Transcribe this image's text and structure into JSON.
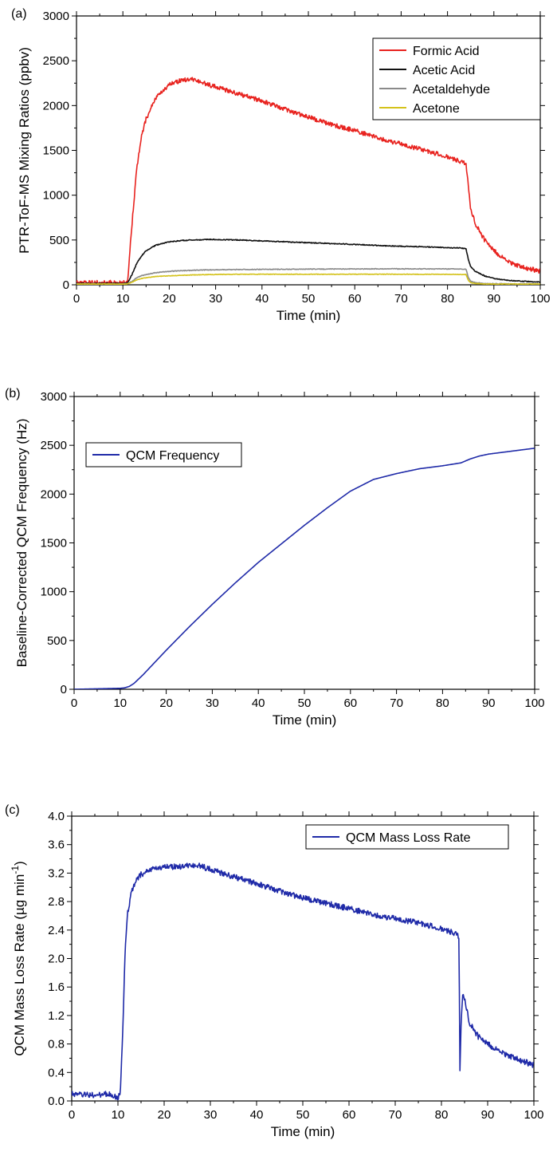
{
  "chart_data": [
    {
      "panel": "(a)",
      "type": "line",
      "xlabel": "Time (min)",
      "ylabel": "PTR-ToF-MS Mixing Ratios (ppbv)",
      "xlim": [
        0,
        100
      ],
      "ylim": [
        0,
        3000
      ],
      "xticks": [
        0,
        10,
        20,
        30,
        40,
        50,
        60,
        70,
        80,
        90,
        100
      ],
      "yticks": [
        0,
        500,
        1000,
        1500,
        2000,
        2500,
        3000
      ],
      "grid": false,
      "legend": "top-right",
      "x": [
        0,
        5,
        10,
        11,
        12,
        13,
        14,
        15,
        17,
        20,
        23,
        25,
        28,
        30,
        35,
        40,
        45,
        50,
        55,
        60,
        65,
        70,
        75,
        80,
        83,
        84,
        84.5,
        85,
        86,
        88,
        90,
        93,
        96,
        100
      ],
      "series": [
        {
          "name": "Formic Acid",
          "color": "#e8231f",
          "noise": 25,
          "values": [
            25,
            25,
            25,
            30,
            700,
            1300,
            1650,
            1850,
            2080,
            2230,
            2290,
            2290,
            2240,
            2210,
            2130,
            2050,
            1960,
            1870,
            1790,
            1720,
            1640,
            1570,
            1500,
            1430,
            1370,
            1350,
            1100,
            850,
            680,
            500,
            380,
            260,
            200,
            150
          ]
        },
        {
          "name": "Acetic Acid",
          "color": "#111111",
          "noise": 5,
          "values": [
            15,
            15,
            15,
            18,
            120,
            240,
            320,
            380,
            440,
            480,
            495,
            500,
            505,
            505,
            500,
            490,
            480,
            470,
            460,
            450,
            440,
            430,
            425,
            415,
            410,
            400,
            280,
            200,
            150,
            100,
            70,
            50,
            40,
            30
          ]
        },
        {
          "name": "Acetaldehyde",
          "color": "#8a8a8a",
          "noise": 4,
          "values": [
            10,
            10,
            10,
            12,
            40,
            80,
            100,
            115,
            135,
            150,
            158,
            162,
            166,
            168,
            170,
            172,
            174,
            175,
            176,
            177,
            178,
            178,
            178,
            177,
            176,
            175,
            80,
            40,
            25,
            15,
            12,
            10,
            10,
            10
          ]
        },
        {
          "name": "Acetone",
          "color": "#d4c21a",
          "noise": 3,
          "values": [
            8,
            8,
            8,
            10,
            30,
            55,
            70,
            80,
            92,
            100,
            106,
            110,
            113,
            115,
            117,
            118,
            118,
            118,
            118,
            118,
            118,
            118,
            117,
            117,
            116,
            115,
            50,
            25,
            15,
            10,
            8,
            8,
            8,
            8
          ]
        }
      ]
    },
    {
      "panel": "(b)",
      "type": "line",
      "xlabel": "Time (min)",
      "ylabel": "Baseline-Corrected QCM Frequency (Hz)",
      "xlim": [
        0,
        100
      ],
      "ylim": [
        0,
        3000
      ],
      "xticks": [
        0,
        10,
        20,
        30,
        40,
        50,
        60,
        70,
        80,
        90,
        100
      ],
      "yticks": [
        0,
        500,
        1000,
        1500,
        2000,
        2500,
        3000
      ],
      "grid": false,
      "legend": "top-left",
      "x": [
        0,
        5,
        10,
        11,
        12,
        13,
        15,
        20,
        25,
        30,
        35,
        40,
        45,
        50,
        55,
        60,
        65,
        70,
        75,
        80,
        84,
        86,
        88,
        90,
        95,
        100
      ],
      "series": [
        {
          "name": "QCM Frequency",
          "color": "#1f2aa8",
          "noise": 0,
          "values": [
            0,
            5,
            10,
            15,
            30,
            60,
            150,
            400,
            640,
            870,
            1090,
            1300,
            1490,
            1680,
            1860,
            2030,
            2150,
            2210,
            2260,
            2290,
            2320,
            2360,
            2390,
            2410,
            2440,
            2470
          ]
        }
      ]
    },
    {
      "panel": "(c)",
      "type": "line",
      "xlabel": "Time (min)",
      "ylabel": "QCM Mass Loss Rate (µg min",
      "ylabel_sup": "-1",
      "ylabel_end": ")",
      "xlim": [
        0,
        100
      ],
      "ylim": [
        0,
        4
      ],
      "xticks": [
        0,
        10,
        20,
        30,
        40,
        50,
        60,
        70,
        80,
        90,
        100
      ],
      "yticks": [
        "0.0",
        "0.4",
        "0.8",
        "1.2",
        "1.6",
        "2.0",
        "2.4",
        "2.8",
        "3.2",
        "3.6",
        "4.0"
      ],
      "grid": false,
      "legend": "top-right",
      "x": [
        0,
        5,
        8,
        10,
        10.5,
        11,
        11.5,
        12,
        13,
        14,
        15,
        17,
        20,
        25,
        28,
        30,
        35,
        40,
        45,
        50,
        55,
        60,
        65,
        70,
        75,
        80,
        83,
        83.8,
        84,
        84.2,
        84.6,
        85,
        86,
        88,
        90,
        93,
        96,
        100
      ],
      "series": [
        {
          "name": "QCM Mass Loss Rate",
          "color": "#1f2aa8",
          "noise": 0.04,
          "values": [
            0.1,
            0.08,
            0.1,
            0.05,
            0.1,
            0.9,
            2.0,
            2.6,
            2.95,
            3.1,
            3.18,
            3.25,
            3.28,
            3.3,
            3.3,
            3.25,
            3.15,
            3.05,
            2.95,
            2.85,
            2.78,
            2.7,
            2.62,
            2.56,
            2.5,
            2.42,
            2.35,
            2.3,
            0.42,
            1.0,
            1.5,
            1.45,
            1.1,
            0.9,
            0.8,
            0.68,
            0.6,
            0.5
          ]
        }
      ]
    }
  ]
}
